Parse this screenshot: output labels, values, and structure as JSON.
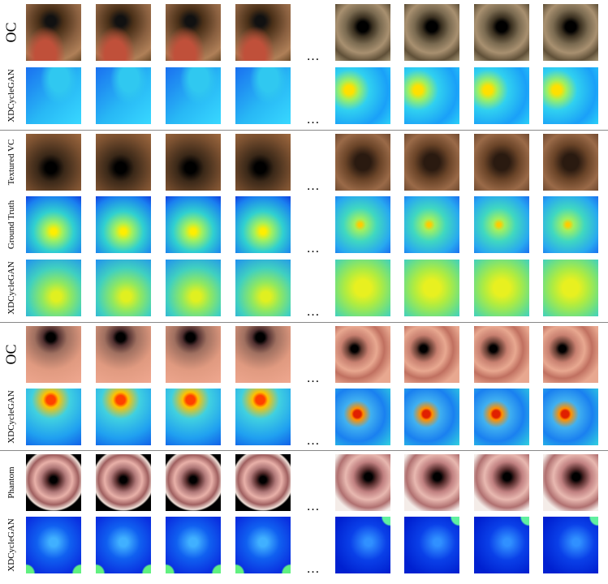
{
  "groups": [
    {
      "rows": [
        {
          "label": "OC",
          "ellipsis": "…"
        },
        {
          "label": "XDCycleGAN",
          "ellipsis": "…"
        }
      ]
    },
    {
      "rows": [
        {
          "label": "Textured VC",
          "ellipsis": "…"
        },
        {
          "label": "Ground Truth",
          "ellipsis": "…"
        },
        {
          "label": "XDCycleGAN",
          "ellipsis": "…"
        }
      ]
    },
    {
      "rows": [
        {
          "label": "OC",
          "ellipsis": "…"
        },
        {
          "label": "XDCycleGAN",
          "ellipsis": "…"
        }
      ]
    },
    {
      "rows": [
        {
          "label": "Phantom",
          "ellipsis": "…"
        },
        {
          "label": "XDCycleGAN",
          "ellipsis": "…"
        }
      ]
    }
  ]
}
